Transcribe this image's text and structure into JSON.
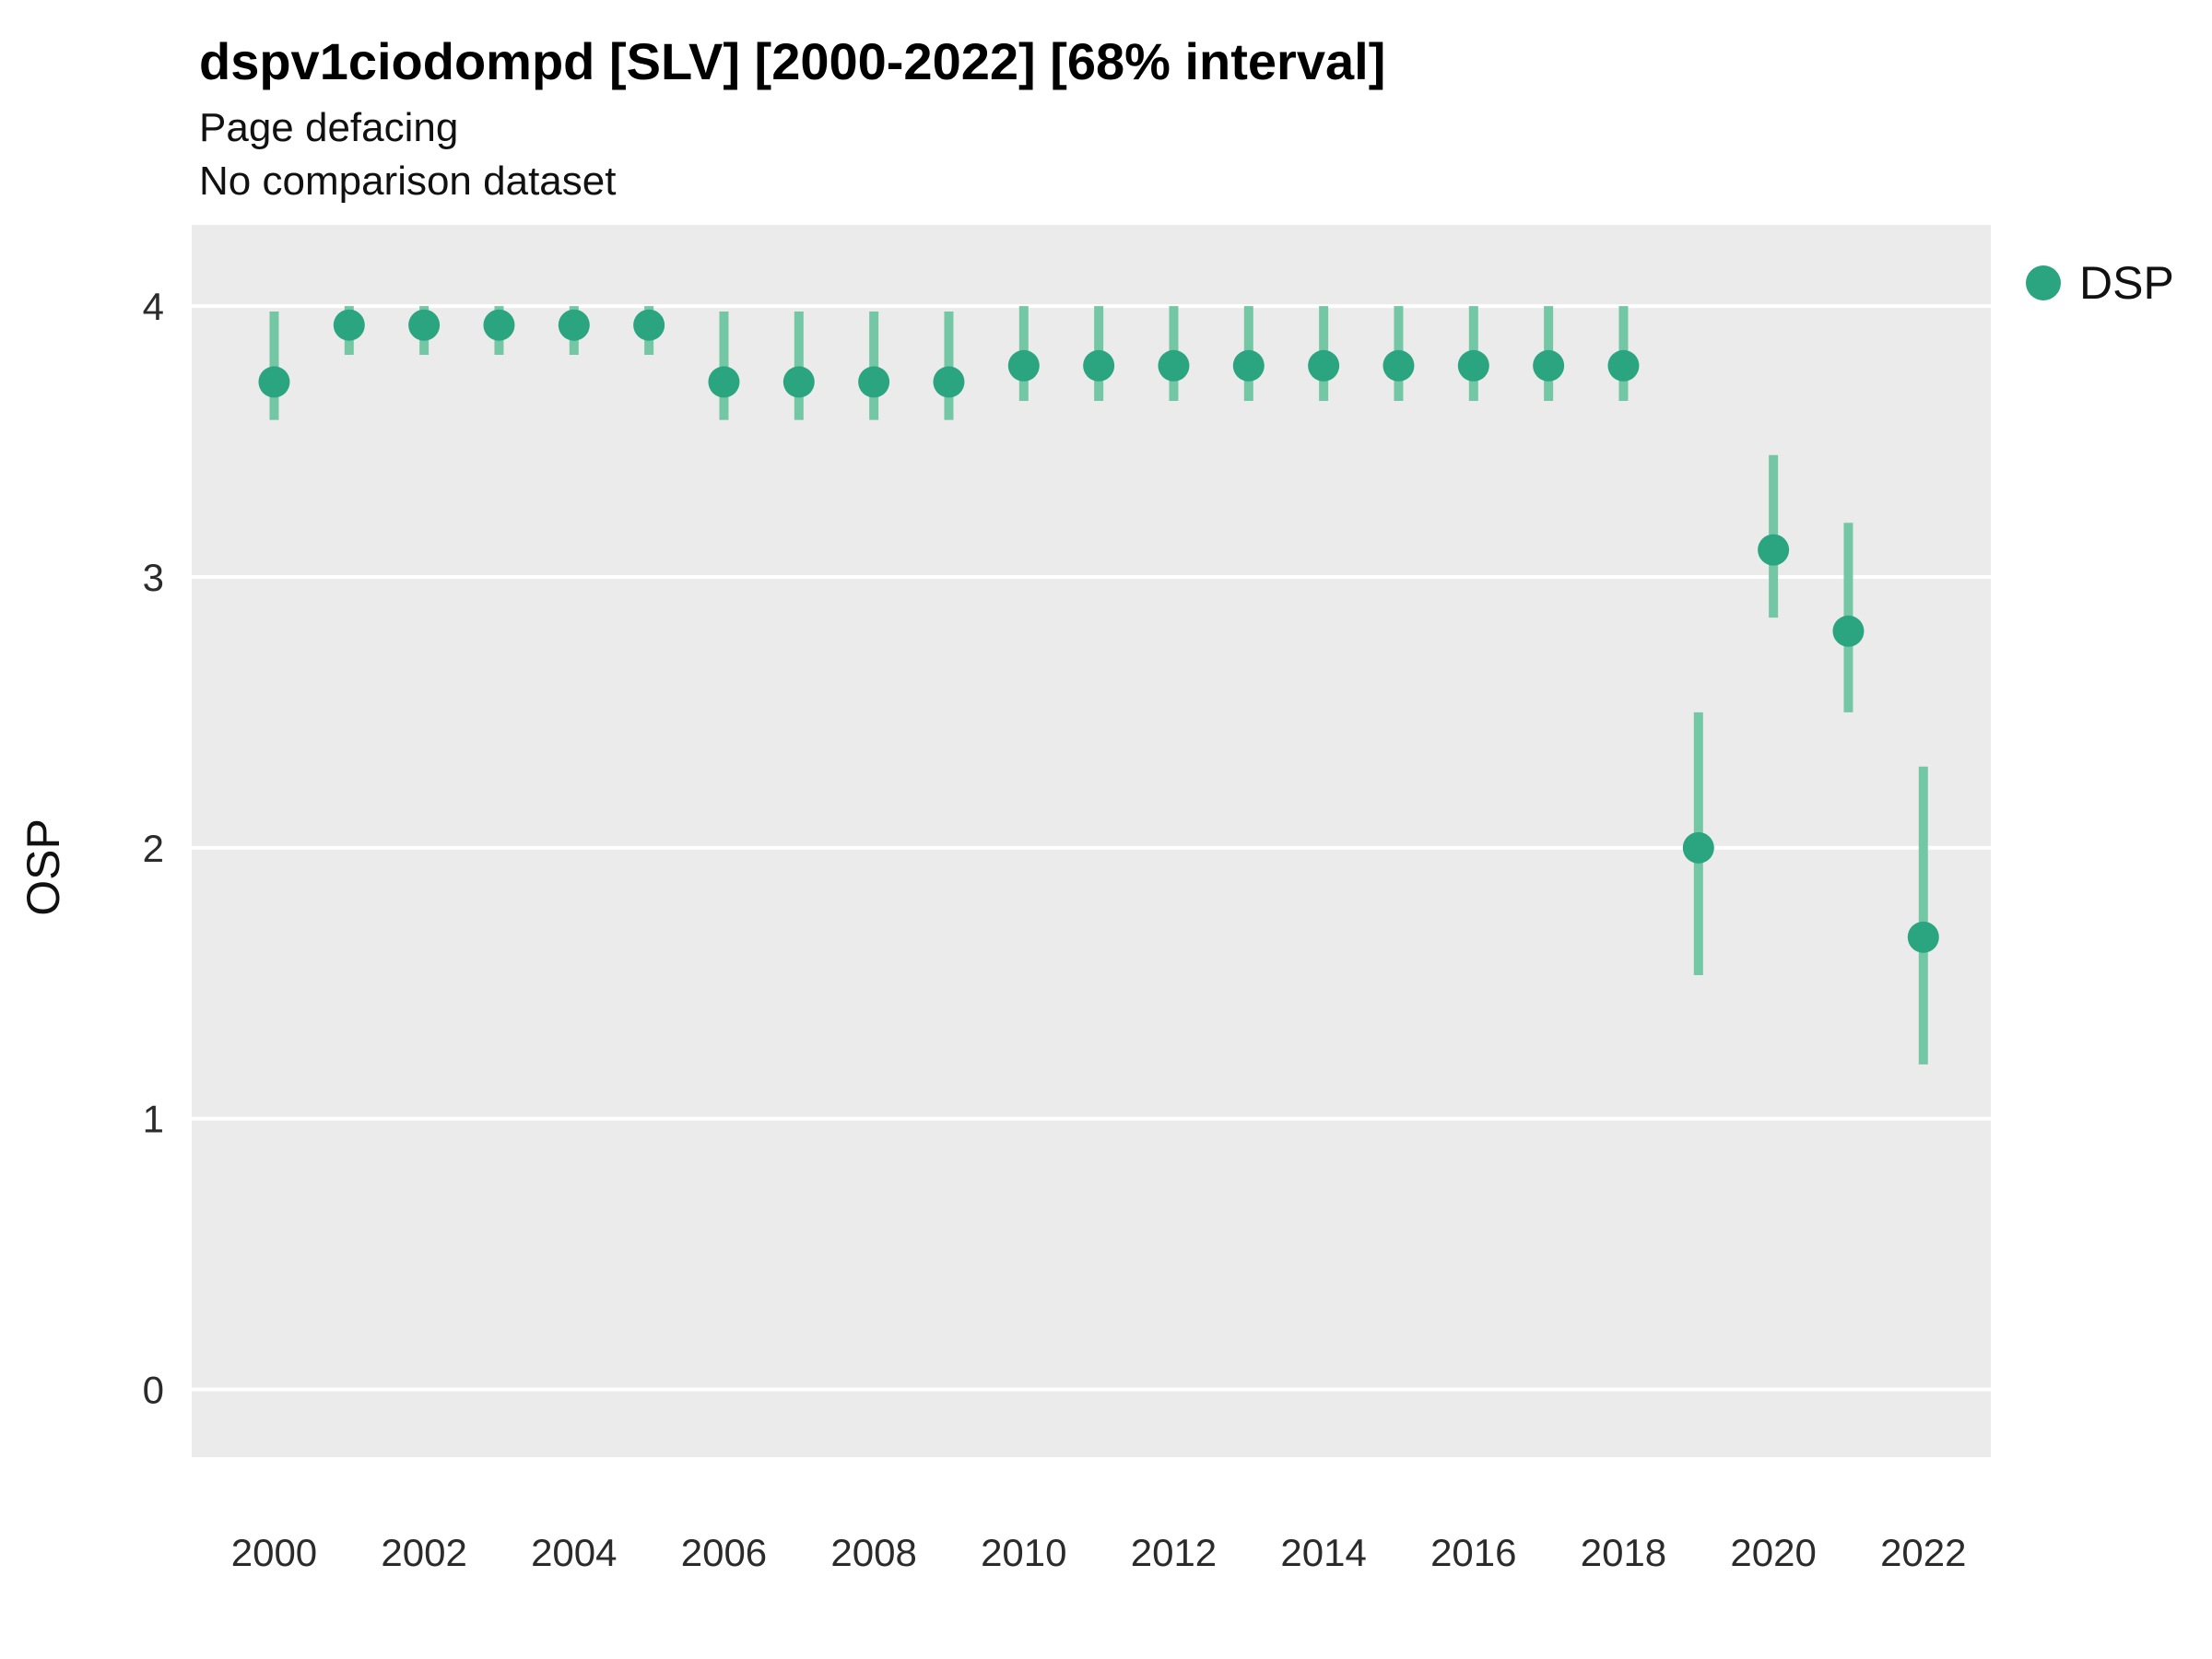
{
  "chart_data": {
    "type": "scatter",
    "title": "dspv1ciodompd [SLV] [2000-2022] [68% interval]",
    "subtitle": "Page defacing",
    "note": "No comparison dataset",
    "xlabel": "",
    "ylabel": "OSP",
    "legend": {
      "position": "right-top",
      "entries": [
        {
          "label": "DSP",
          "color": "#2aa57f"
        }
      ]
    },
    "x": [
      2000,
      2001,
      2002,
      2003,
      2004,
      2005,
      2006,
      2007,
      2008,
      2009,
      2010,
      2011,
      2012,
      2013,
      2014,
      2015,
      2016,
      2017,
      2018,
      2019,
      2020,
      2021,
      2022
    ],
    "series": [
      {
        "name": "DSP",
        "values": [
          3.72,
          3.93,
          3.93,
          3.93,
          3.93,
          3.93,
          3.72,
          3.72,
          3.72,
          3.72,
          3.78,
          3.78,
          3.78,
          3.78,
          3.78,
          3.78,
          3.78,
          3.78,
          3.78,
          2.0,
          3.1,
          2.8,
          1.67
        ],
        "lower": [
          3.58,
          3.82,
          3.82,
          3.82,
          3.82,
          3.82,
          3.58,
          3.58,
          3.58,
          3.58,
          3.65,
          3.65,
          3.65,
          3.65,
          3.65,
          3.65,
          3.65,
          3.65,
          3.65,
          1.53,
          2.85,
          2.5,
          1.2
        ],
        "upper": [
          3.98,
          4.0,
          4.0,
          4.0,
          4.0,
          4.0,
          3.98,
          3.98,
          3.98,
          3.98,
          4.0,
          4.0,
          4.0,
          4.0,
          4.0,
          4.0,
          4.0,
          4.0,
          4.0,
          2.5,
          3.45,
          3.2,
          2.3
        ]
      }
    ],
    "x_ticks": [
      2000,
      2002,
      2004,
      2006,
      2008,
      2010,
      2012,
      2014,
      2016,
      2018,
      2020,
      2022
    ],
    "y_ticks": [
      0,
      1,
      2,
      3,
      4
    ],
    "xlim": [
      1998.9,
      2022.9
    ],
    "ylim": [
      -0.25,
      4.3
    ],
    "grid": true,
    "style": {
      "panel_bg": "#ebebeb",
      "grid_color": "#ffffff",
      "point_color": "#2aa57f",
      "errorbar_color": "#74c7a4",
      "tick_label_color": "#2b2b2b"
    }
  }
}
